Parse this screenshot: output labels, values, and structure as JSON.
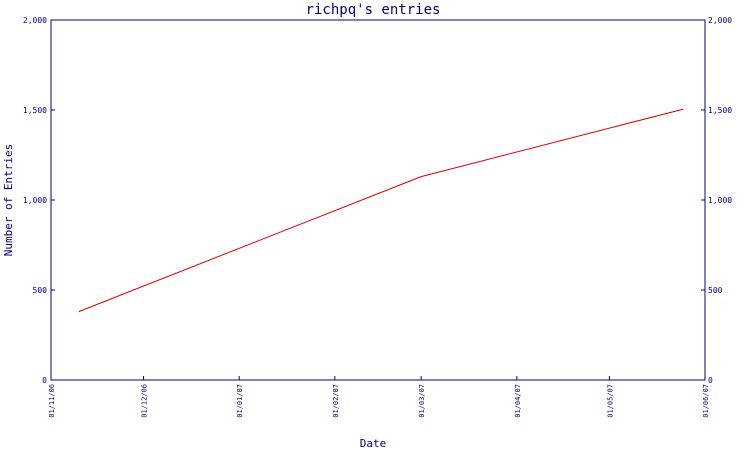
{
  "chart_data": {
    "type": "line",
    "title": "richpq's entries",
    "xlabel": "Date",
    "ylabel": "Number of Entries",
    "ylim": [
      0,
      2000
    ],
    "y_ticks": [
      "0",
      "500",
      "1,000",
      "1,500",
      "2,000"
    ],
    "y_tick_values": [
      0,
      500,
      1000,
      1500,
      2000
    ],
    "x_range": [
      "2006-11-01",
      "2007-06-01"
    ],
    "x_ticks": [
      "01/11/06",
      "01/12/06",
      "01/01/07",
      "01/02/07",
      "01/03/07",
      "01/04/07",
      "01/05/07",
      "01/06/07"
    ],
    "x_tick_dates": [
      "2006-11-01",
      "2006-12-01",
      "2007-01-01",
      "2007-02-01",
      "2007-03-01",
      "2007-04-01",
      "2007-05-01",
      "2007-06-01"
    ],
    "grid": false,
    "colors": {
      "axis": "#000080",
      "line": "#e00000"
    },
    "series": [
      {
        "x": [
          "2006-11-10",
          "2007-03-01",
          "2007-05-25"
        ],
        "y": [
          380,
          1130,
          1505
        ]
      }
    ]
  }
}
